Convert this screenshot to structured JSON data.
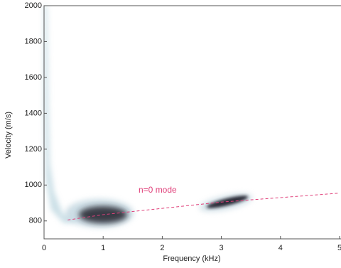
{
  "chart_data": {
    "type": "line",
    "x_label": "Frequency (kHz)",
    "y_label": "Velocity (m/s)",
    "annotation": "n=0 mode",
    "xlim": [
      0,
      5
    ],
    "xticks": [
      0,
      1,
      2,
      3,
      4,
      5
    ],
    "ylim": [
      700,
      2000
    ],
    "yticks": [
      800,
      1000,
      1200,
      1400,
      1600,
      1800,
      2000
    ],
    "series": [
      {
        "name": "n=0 mode",
        "color": "#e0407a",
        "x": [
          0.4,
          1,
          2,
          3,
          4,
          5
        ],
        "values": [
          805,
          835,
          870,
          905,
          930,
          955
        ]
      }
    ]
  }
}
